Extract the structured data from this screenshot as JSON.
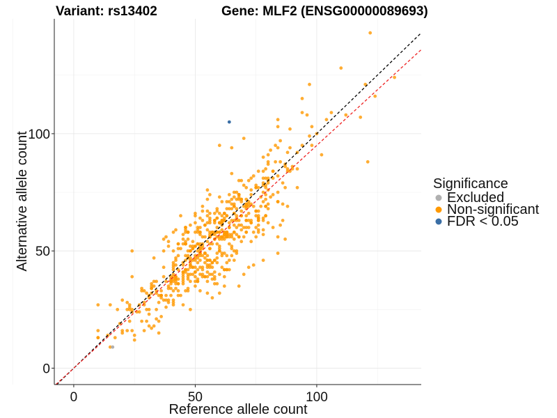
{
  "chart_data": {
    "type": "scatter",
    "title_left": "Variant: rs13402",
    "title_right": "Gene: MLF2 (ENSG00000089693)",
    "xlabel": "Reference allele count",
    "ylabel": "Alternative allele count",
    "xlim": [
      -8,
      143
    ],
    "ylim": [
      -7,
      149
    ],
    "xticks": [
      0,
      50,
      100
    ],
    "yticks": [
      0,
      50,
      100
    ],
    "reference_lines": [
      {
        "name": "identity",
        "color": "#000000",
        "dash": "4,3",
        "slope": 1,
        "intercept": 0
      },
      {
        "name": "fit",
        "color": "#ee2222",
        "dash": "4,3",
        "slope": 0.95,
        "intercept": 0
      }
    ],
    "legend": {
      "title": "Significance",
      "items": [
        {
          "label": "Excluded",
          "color": "#b0b0b0"
        },
        {
          "label": "Non-significant",
          "color": "#ff9900"
        },
        {
          "label": "FDR < 0.05",
          "color": "#3a6ea5"
        }
      ]
    },
    "series": [
      {
        "name": "Excluded",
        "color": "#b0b0b0",
        "points": [
          [
            16,
            9
          ]
        ]
      },
      {
        "name": "FDR < 0.05",
        "color": "#3a6ea5",
        "points": [
          [
            64,
            105
          ]
        ]
      },
      {
        "name": "Non-significant",
        "color": "#ff9900",
        "points": "generated"
      }
    ],
    "n_points_nonsignificant": 560
  }
}
